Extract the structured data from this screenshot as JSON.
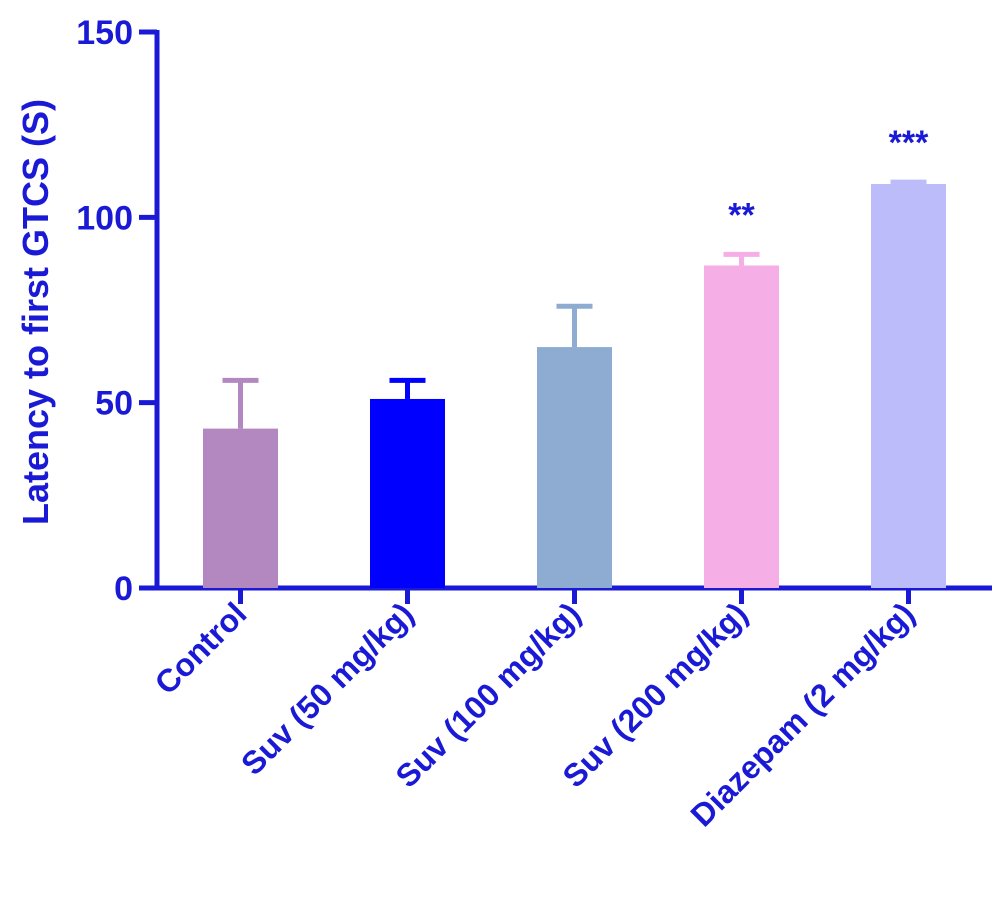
{
  "chart_data": {
    "type": "bar",
    "ylabel": "Latency to first GTCS (S)",
    "xlabel": "",
    "ylim": [
      0,
      150
    ],
    "yticks": [
      0,
      50,
      100,
      150
    ],
    "grid": false,
    "legend": "none",
    "axis_color": "#1a1ad6",
    "categories": [
      "Control",
      "Suv (50 mg/kg)",
      "Suv (100 mg/kg)",
      "Suv (200 mg/kg)",
      "Diazepam (2 mg/kg)"
    ],
    "values": [
      43,
      51,
      65,
      87,
      109
    ],
    "errors": [
      13,
      5,
      11,
      3,
      0.5
    ],
    "colors": [
      "#b388c0",
      "#0000ff",
      "#8eacd2",
      "#f5aee6",
      "#bcbcfb"
    ],
    "annotations": [
      "",
      "",
      "",
      "**",
      "***"
    ]
  }
}
